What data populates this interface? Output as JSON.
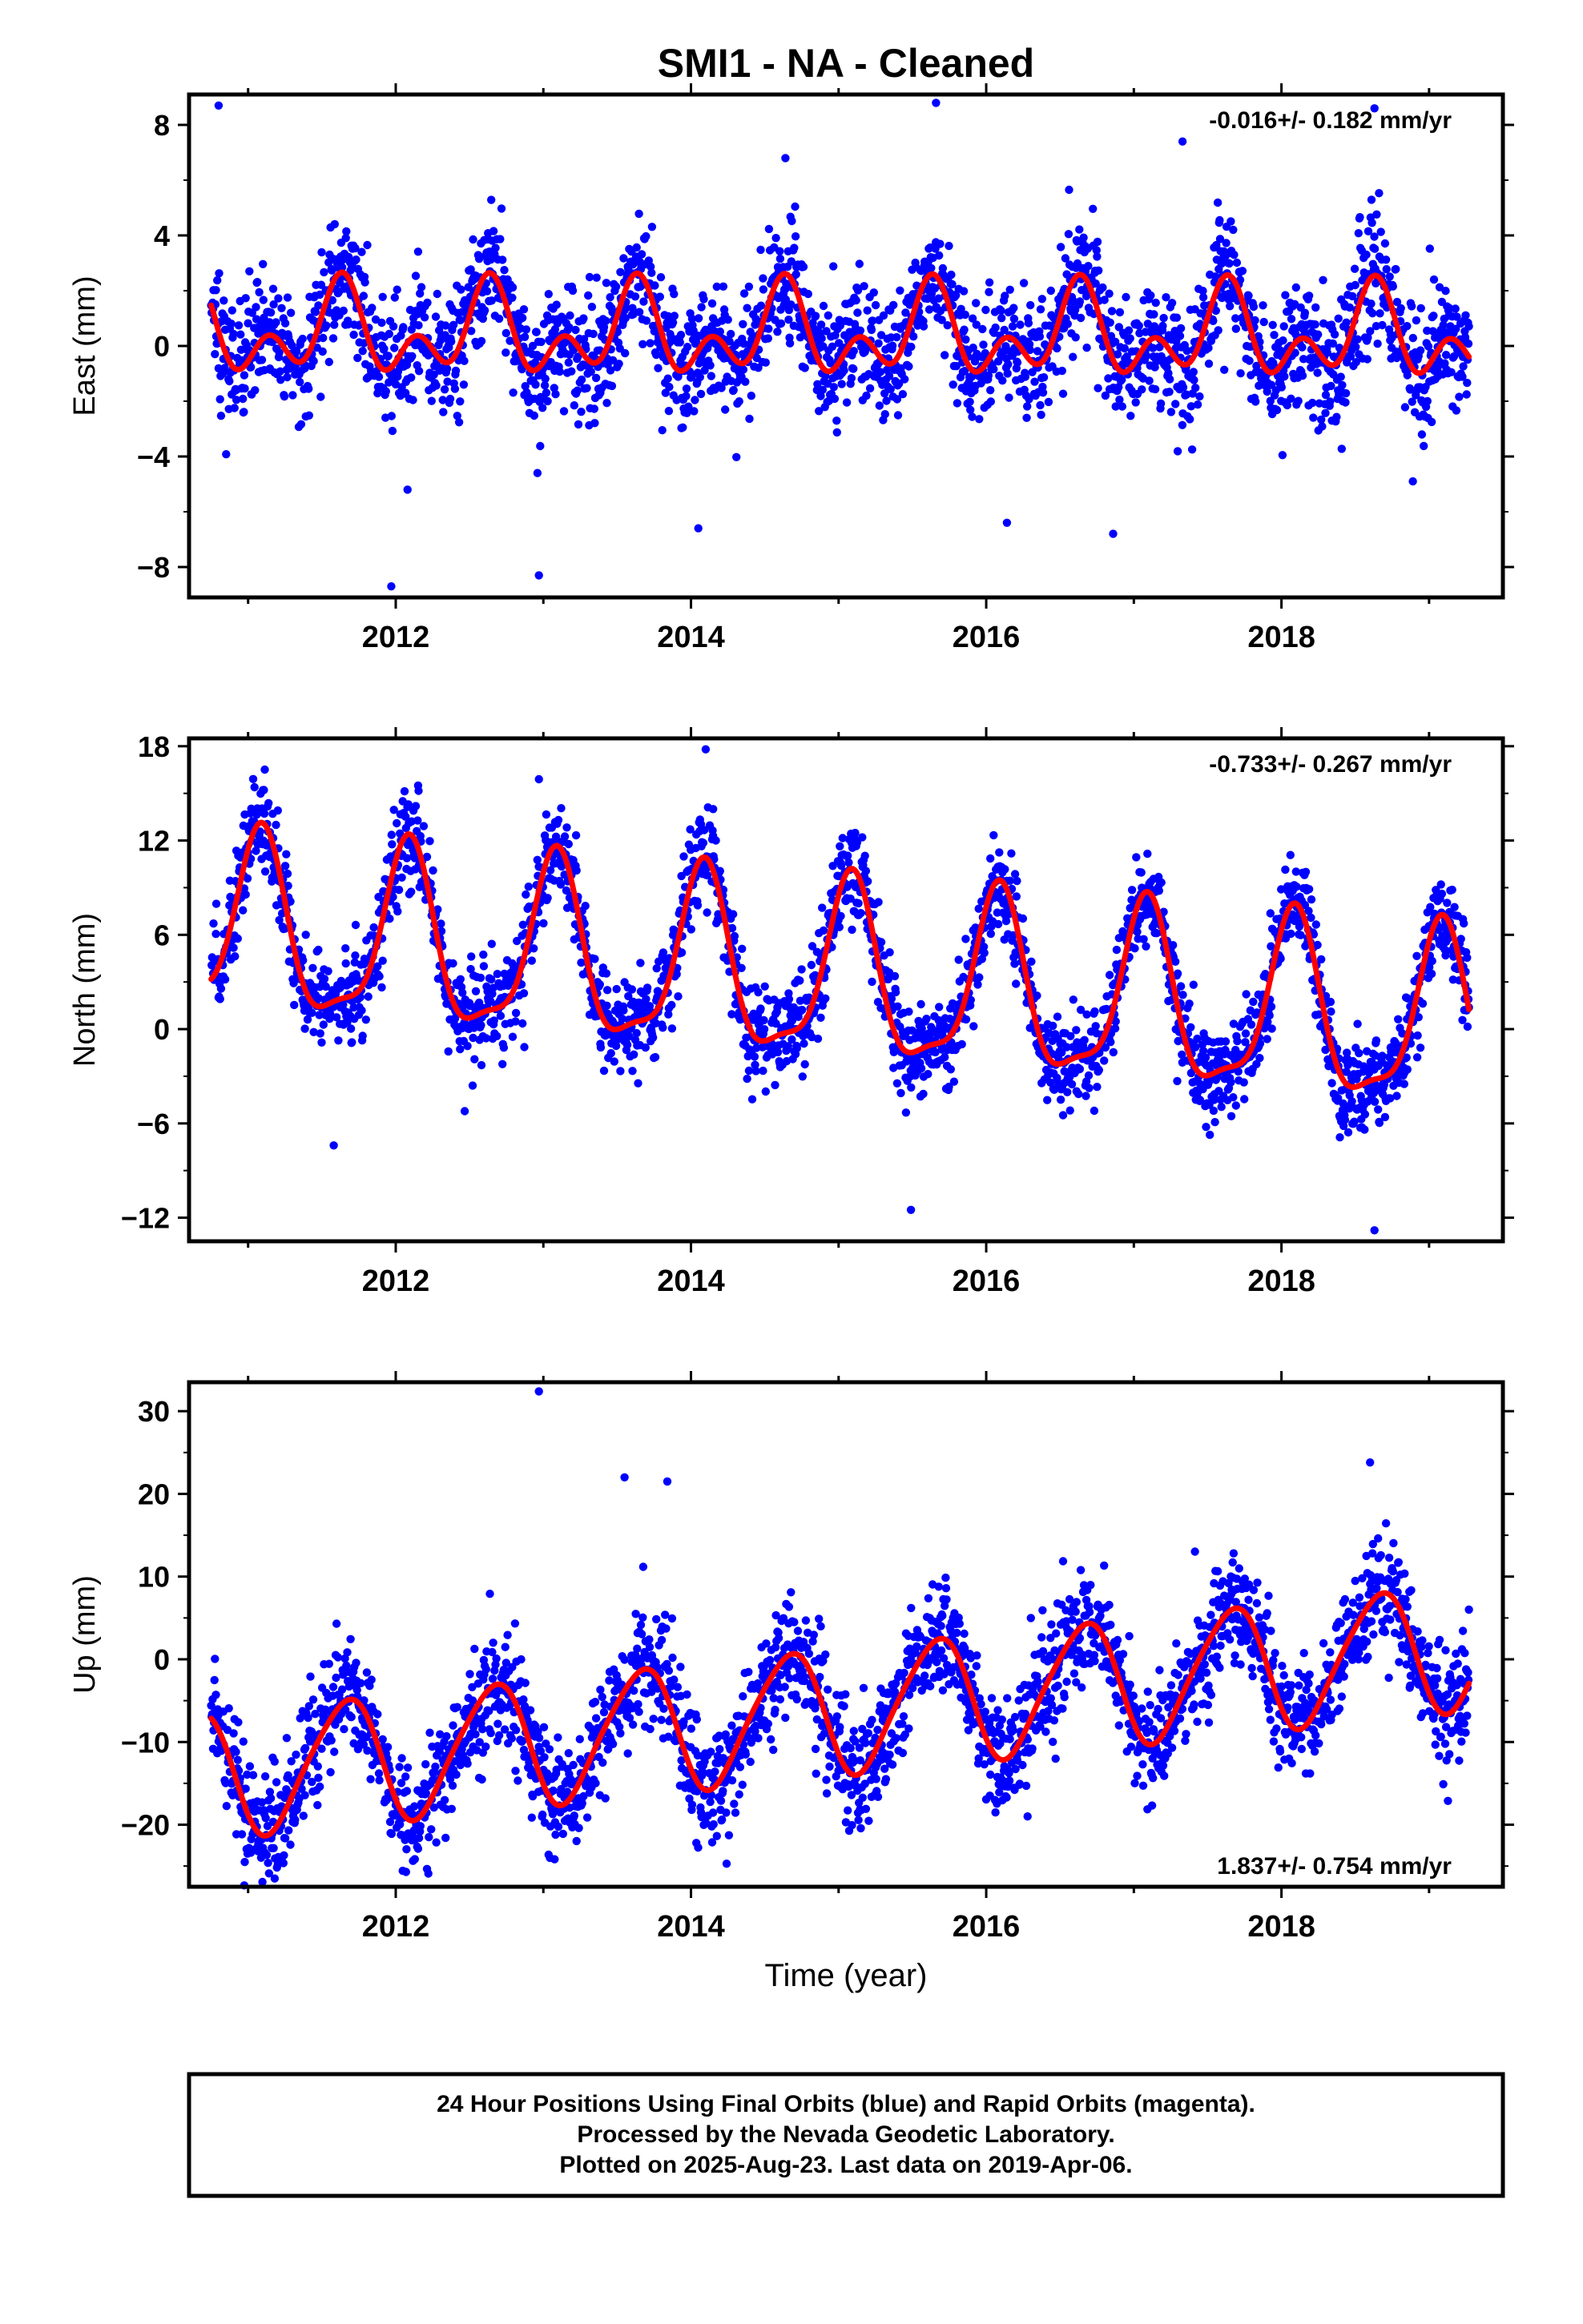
{
  "chart_data": {
    "title": "SMI1  - NA - Cleaned",
    "xlabel": "Time (year)",
    "x_ticks": [
      "2012",
      "2014",
      "2016",
      "2018"
    ],
    "x_tick_values": [
      2012,
      2014,
      2016,
      2018
    ],
    "xlim": [
      2010.6,
      2019.5
    ],
    "point_color": "#0000ff",
    "model_color": "#ff0000",
    "panels": [
      {
        "type": "scatter",
        "ylabel": "East (mm)",
        "ylim": [
          -9.1,
          9.1
        ],
        "y_ticks": [
          "8",
          "4",
          "0",
          "−4",
          "−8"
        ],
        "y_tick_values": [
          8,
          4,
          0,
          -4,
          -8
        ],
        "rate_label": "-0.016+/- 0.182 mm/yr",
        "rate_position": "top-right",
        "start": 2010.75,
        "end": 2019.27,
        "model": {
          "offset": 0.42,
          "trend": -0.016,
          "annual_amp": 1.15,
          "annual_peak": 0.62,
          "semiannual_amp": 1.05,
          "semiannual_peak": 0.64
        },
        "noise_sd": 1.1,
        "outliers": [
          [
            2010.8,
            8.7
          ],
          [
            2011.97,
            -8.7
          ],
          [
            2012.97,
            -8.3
          ],
          [
            2014.05,
            -6.6
          ],
          [
            2016.14,
            -6.4
          ],
          [
            2015.66,
            8.8
          ],
          [
            2014.64,
            6.8
          ],
          [
            2017.33,
            7.4
          ],
          [
            2018.63,
            8.6
          ],
          [
            2016.86,
            -6.8
          ],
          [
            2012.08,
            -5.2
          ],
          [
            2012.96,
            -4.6
          ],
          [
            2018.89,
            -4.9
          ]
        ]
      },
      {
        "type": "scatter",
        "ylabel": "North (mm)",
        "ylim": [
          -13.5,
          18.5
        ],
        "y_ticks": [
          "18",
          "12",
          "6",
          "0",
          "−6",
          "−12"
        ],
        "y_tick_values": [
          18,
          12,
          6,
          0,
          -6,
          -12
        ],
        "rate_label": "-0.733+/- 0.267 mm/yr",
        "rate_position": "top-right",
        "start": 2010.75,
        "end": 2019.27,
        "model": {
          "offset": 3.2,
          "trend": -0.733,
          "annual_amp": 5.5,
          "annual_peak": 0.08,
          "semiannual_amp": 1.6,
          "semiannual_peak": 0.1
        },
        "noise_sd": 1.5,
        "outliers": [
          [
            2014.1,
            17.8
          ],
          [
            2012.97,
            15.9
          ],
          [
            2015.49,
            -11.5
          ],
          [
            2018.63,
            -12.8
          ],
          [
            2014.15,
            14.0
          ],
          [
            2011.58,
            -7.4
          ]
        ]
      },
      {
        "type": "scatter",
        "ylabel": "Up (mm)",
        "ylim": [
          -27.5,
          33.5
        ],
        "y_ticks": [
          "30",
          "20",
          "10",
          "0",
          "−10",
          "−20"
        ],
        "y_tick_values": [
          30,
          20,
          10,
          0,
          -10,
          -20
        ],
        "rate_label": "1.837+/- 0.754 mm/yr",
        "rate_position": "bottom-right",
        "start": 2010.75,
        "end": 2019.27,
        "model": {
          "offset": -6.2,
          "trend": 1.837,
          "annual_amp": 7.5,
          "annual_peak": 0.65,
          "semiannual_amp": 1.0,
          "semiannual_peak": 0.3
        },
        "noise_sd": 3.6,
        "outliers": [
          [
            2012.97,
            32.4
          ],
          [
            2013.55,
            22.0
          ],
          [
            2013.84,
            21.5
          ],
          [
            2011.18,
            -26.5
          ],
          [
            2016.28,
            -19.0
          ],
          [
            2018.6,
            23.8
          ]
        ]
      }
    ]
  },
  "footer": {
    "line1": "24 Hour Positions Using Final Orbits (blue) and Rapid Orbits (magenta).",
    "line2": "Processed by the Nevada Geodetic Laboratory.",
    "line3": "Plotted on 2025-Aug-23. Last data on 2019-Apr-06."
  }
}
